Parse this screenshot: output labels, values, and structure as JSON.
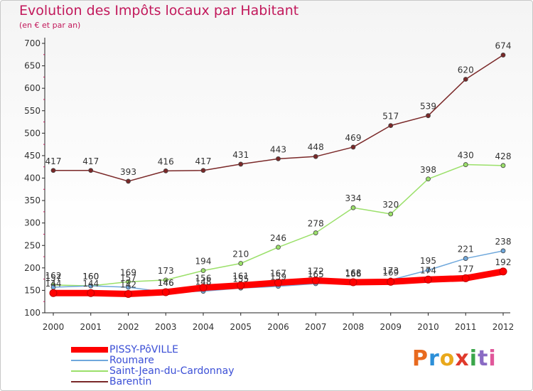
{
  "header": {
    "title": "Evolution des Impôts locaux par Habitant",
    "subtitle": "(en € et par an)"
  },
  "logo": {
    "text": "Proxiti",
    "colors": [
      "#e86a1f",
      "#2c8fd8",
      "#e9a81b",
      "#e03a2c",
      "#3aa64a",
      "#8a6bc4",
      "#e0579a"
    ]
  },
  "chart_data": {
    "type": "line",
    "x": [
      "2000",
      "2001",
      "2002",
      "2003",
      "2004",
      "2005",
      "2006",
      "2007",
      "2008",
      "2009",
      "2010",
      "2011",
      "2012"
    ],
    "ylim": [
      100,
      700
    ],
    "yticks": [
      "100",
      "150",
      "200",
      "250",
      "300",
      "350",
      "400",
      "450",
      "500",
      "550",
      "600",
      "650",
      "700"
    ],
    "grid": false,
    "legend_position": "bottom-left",
    "series": [
      {
        "name": "PISSY-PôVILLE",
        "color": "#ff0000",
        "values": [
          144,
          144,
          142,
          146,
          156,
          161,
          167,
          172,
          168,
          169,
          174,
          177,
          192
        ],
        "labels": [
          "144",
          "144",
          "142",
          "146",
          "156",
          "161",
          "167",
          "172",
          "168",
          "169",
          "174",
          "177",
          "192"
        ]
      },
      {
        "name": "Roumare",
        "color": "#6fa8dc",
        "values": [
          157,
          160,
          157,
          146,
          148,
          155,
          159,
          165,
          166,
          173,
          195,
          221,
          238
        ],
        "labels": [
          "157",
          "160",
          "157",
          "146",
          "148",
          "155",
          "159",
          "165",
          "166",
          "173",
          "195",
          "221",
          "238"
        ]
      },
      {
        "name": "Saint-Jean-du-Cardonnay",
        "color": "#9be06a",
        "values": [
          162,
          160,
          169,
          173,
          194,
          210,
          246,
          278,
          334,
          320,
          398,
          430,
          428
        ],
        "labels": [
          "162",
          "160",
          "169",
          "173",
          "194",
          "210",
          "246",
          "278",
          "334",
          "320",
          "398",
          "430",
          "428"
        ]
      },
      {
        "name": "Barentin",
        "color": "#7a2828",
        "values": [
          417,
          417,
          393,
          416,
          417,
          431,
          443,
          448,
          469,
          517,
          539,
          620,
          674
        ],
        "labels": [
          "417",
          "417",
          "393",
          "416",
          "417",
          "431",
          "443",
          "448",
          "469",
          "517",
          "539",
          "620",
          "674"
        ]
      }
    ]
  }
}
